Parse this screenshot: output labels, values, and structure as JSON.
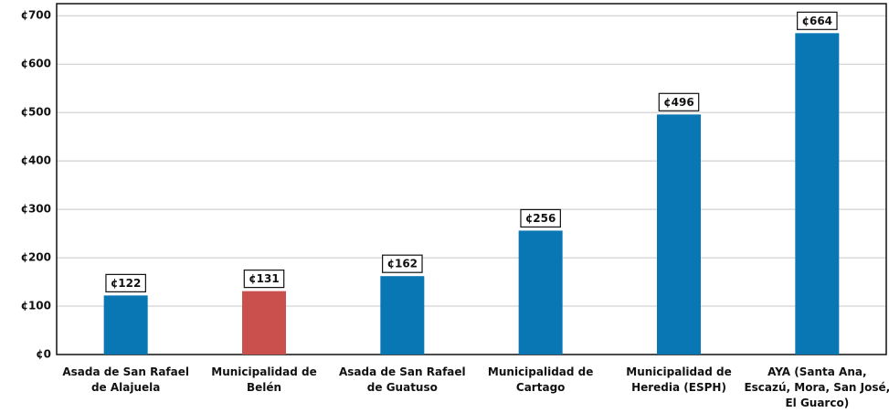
{
  "chart_data": {
    "type": "bar",
    "categories": [
      "Asada de San Rafael\nde Alajuela",
      "Municipalidad de\nBelén",
      "Asada de San Rafael\nde Guatuso",
      "Municipalidad de\nCartago",
      "Municipalidad de\nHeredia (ESPH)",
      "AYA (Santa Ana,\nEscazú, Mora, San José,\nEl Guarco)"
    ],
    "values": [
      122,
      131,
      162,
      256,
      496,
      664
    ],
    "value_labels": [
      "¢122",
      "¢131",
      "¢162",
      "¢256",
      "¢496",
      "¢664"
    ],
    "colors": [
      "#0a77b5",
      "#c9504c",
      "#0a77b5",
      "#0a77b5",
      "#0a77b5",
      "#0a77b5"
    ],
    "ylim": [
      0,
      725
    ],
    "yticks": [
      {
        "value": 0,
        "label": "¢0"
      },
      {
        "value": 100,
        "label": "¢100"
      },
      {
        "value": 200,
        "label": "¢200"
      },
      {
        "value": 300,
        "label": "¢300"
      },
      {
        "value": 400,
        "label": "¢400"
      },
      {
        "value": 500,
        "label": "¢500"
      },
      {
        "value": 600,
        "label": "¢600"
      },
      {
        "value": 700,
        "label": "¢700"
      }
    ],
    "grid": true
  }
}
